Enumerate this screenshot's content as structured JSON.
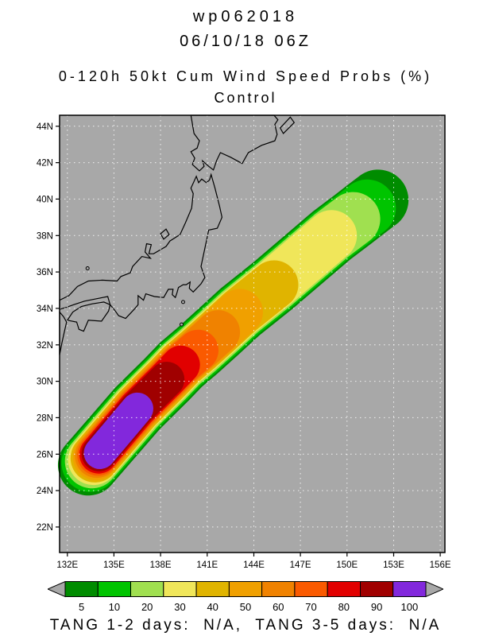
{
  "header": {
    "storm_id": "wp062018",
    "datetime": "06/10/18 06Z",
    "title": "0-120h 50kt Cum Wind Speed Probs (%)",
    "subtitle": "Control"
  },
  "footer": {
    "text": "TANG 1-2 days:  N/A,  TANG 3-5 days:  N/A"
  },
  "colorbar": {
    "arrow_color": "#a8a8a8"
  },
  "map": {
    "ocean_color": "#a8a8a8",
    "land_color": "#a8a8a8",
    "coast_color": "#000000",
    "grid_color": "#ffffff",
    "lon_min": 131.5,
    "lon_max": 156.3,
    "lat_min": 20.6,
    "lat_max": 44.6,
    "lon_ticks": [
      {
        "value": 132,
        "label": "132E"
      },
      {
        "value": 135,
        "label": "135E"
      },
      {
        "value": 138,
        "label": "138E"
      },
      {
        "value": 141,
        "label": "141E"
      },
      {
        "value": 144,
        "label": "144E"
      },
      {
        "value": 147,
        "label": "147E"
      },
      {
        "value": 150,
        "label": "150E"
      },
      {
        "value": 153,
        "label": "153E"
      },
      {
        "value": 156,
        "label": "156E"
      }
    ],
    "lat_ticks": [
      {
        "value": 44,
        "label": "44N"
      },
      {
        "value": 42,
        "label": "42N"
      },
      {
        "value": 40,
        "label": "40N"
      },
      {
        "value": 38,
        "label": "38N"
      },
      {
        "value": 36,
        "label": "36N"
      },
      {
        "value": 34,
        "label": "34N"
      },
      {
        "value": 32,
        "label": "32N"
      },
      {
        "value": 30,
        "label": "30N"
      },
      {
        "value": 28,
        "label": "28N"
      },
      {
        "value": 26,
        "label": "26N"
      },
      {
        "value": 24,
        "label": "24N"
      },
      {
        "value": 22,
        "label": "22N"
      }
    ],
    "coastlines": [
      {
        "name": "honshu",
        "points": [
          [
            141.25,
            41.35
          ],
          [
            141.5,
            40.6
          ],
          [
            141.8,
            39.6
          ],
          [
            141.95,
            39.0
          ],
          [
            141.65,
            38.4
          ],
          [
            141.1,
            38.3
          ],
          [
            140.95,
            37.7
          ],
          [
            140.75,
            36.9
          ],
          [
            140.6,
            36.3
          ],
          [
            140.85,
            35.7
          ],
          [
            140.6,
            35.35
          ],
          [
            140.1,
            34.9
          ],
          [
            139.85,
            35.1
          ],
          [
            139.9,
            35.45
          ],
          [
            139.65,
            35.3
          ],
          [
            139.45,
            35.3
          ],
          [
            139.15,
            35.15
          ],
          [
            139.05,
            34.85
          ],
          [
            138.95,
            34.6
          ],
          [
            138.75,
            34.75
          ],
          [
            138.8,
            35.05
          ],
          [
            138.5,
            35.05
          ],
          [
            138.2,
            34.6
          ],
          [
            137.6,
            34.65
          ],
          [
            137.05,
            34.8
          ],
          [
            136.9,
            34.45
          ],
          [
            136.55,
            34.7
          ],
          [
            136.55,
            34.2
          ],
          [
            136.3,
            33.95
          ],
          [
            135.75,
            33.45
          ],
          [
            135.3,
            33.6
          ],
          [
            135.05,
            33.9
          ],
          [
            134.75,
            34.2
          ],
          [
            134.6,
            34.65
          ],
          [
            134.0,
            34.55
          ],
          [
            133.1,
            34.4
          ],
          [
            132.4,
            34.2
          ],
          [
            131.9,
            34.05
          ],
          [
            131.5,
            33.95
          ],
          [
            131.5,
            34.45
          ],
          [
            132.1,
            34.7
          ],
          [
            132.65,
            35.2
          ],
          [
            133.35,
            35.5
          ],
          [
            134.25,
            35.55
          ],
          [
            135.2,
            35.5
          ],
          [
            135.45,
            35.75
          ],
          [
            136.05,
            35.95
          ],
          [
            136.2,
            36.3
          ],
          [
            136.8,
            36.85
          ],
          [
            137.35,
            36.75
          ],
          [
            137.0,
            37.1
          ],
          [
            137.1,
            37.55
          ],
          [
            137.4,
            37.5
          ],
          [
            137.25,
            37.0
          ],
          [
            137.55,
            37.0
          ],
          [
            138.35,
            37.4
          ],
          [
            138.6,
            37.7
          ],
          [
            139.25,
            38.05
          ],
          [
            139.6,
            38.7
          ],
          [
            140.0,
            39.5
          ],
          [
            140.1,
            40.3
          ],
          [
            139.95,
            40.6
          ],
          [
            140.3,
            41.25
          ],
          [
            140.45,
            40.9
          ],
          [
            140.65,
            41.1
          ],
          [
            140.95,
            40.9
          ],
          [
            141.15,
            41.05
          ]
        ]
      },
      {
        "name": "hokkaido",
        "points": [
          [
            139.95,
            44.6
          ],
          [
            140.15,
            43.6
          ],
          [
            140.5,
            43.2
          ],
          [
            140.35,
            42.8
          ],
          [
            139.95,
            42.6
          ],
          [
            140.2,
            42.25
          ],
          [
            140.05,
            41.9
          ],
          [
            140.5,
            41.55
          ],
          [
            140.8,
            41.8
          ],
          [
            140.7,
            42.1
          ],
          [
            141.1,
            41.8
          ],
          [
            141.4,
            41.6
          ],
          [
            141.6,
            42.1
          ],
          [
            141.85,
            42.55
          ],
          [
            142.5,
            42.3
          ],
          [
            143.25,
            41.95
          ],
          [
            143.65,
            42.55
          ],
          [
            144.5,
            42.95
          ],
          [
            145.35,
            43.2
          ],
          [
            145.5,
            43.55
          ],
          [
            145.35,
            44.1
          ],
          [
            145.55,
            44.35
          ],
          [
            145.3,
            44.6
          ]
        ]
      },
      {
        "name": "shikoku",
        "points": [
          [
            132.0,
            33.35
          ],
          [
            132.6,
            33.25
          ],
          [
            132.75,
            32.85
          ],
          [
            133.05,
            32.75
          ],
          [
            133.35,
            33.35
          ],
          [
            134.2,
            33.3
          ],
          [
            134.65,
            33.85
          ],
          [
            134.75,
            34.2
          ],
          [
            134.35,
            34.35
          ],
          [
            133.6,
            34.25
          ],
          [
            132.9,
            34.1
          ],
          [
            132.35,
            33.8
          ]
        ]
      },
      {
        "name": "kyushu",
        "points": [
          [
            131.5,
            33.8
          ],
          [
            131.75,
            33.55
          ],
          [
            131.95,
            33.25
          ],
          [
            131.8,
            32.7
          ],
          [
            131.65,
            32.1
          ],
          [
            131.5,
            31.45
          ]
        ]
      },
      {
        "name": "sado",
        "points": [
          [
            138.2,
            37.8
          ],
          [
            138.55,
            38.05
          ],
          [
            138.35,
            38.35
          ],
          [
            138.0,
            38.1
          ]
        ]
      },
      {
        "name": "kunashiri",
        "points": [
          [
            145.9,
            43.6
          ],
          [
            146.6,
            44.2
          ],
          [
            146.35,
            44.5
          ],
          [
            145.7,
            43.9
          ]
        ]
      }
    ],
    "islands": [
      [
        139.45,
        34.35
      ],
      [
        139.35,
        33.12
      ],
      [
        133.3,
        36.2
      ]
    ]
  },
  "chart_data": {
    "type": "heatmap",
    "subtype": "filled-contour probability swath on map",
    "storm_id": "wp062018",
    "valid": "06/10/18 06Z",
    "title": "0-120h 50kt Cum Wind Speed Probs (%)",
    "subtitle": "Control",
    "units": "%",
    "legend_labels": [
      "5",
      "10",
      "20",
      "30",
      "40",
      "50",
      "60",
      "70",
      "80",
      "90",
      "100"
    ],
    "legend_position": "bottom",
    "grid": true,
    "levels": [
      {
        "value": 5,
        "color": "#008c00",
        "halfwidth_deg": 1.8,
        "sw": [
          133.35,
          25.4
        ],
        "ne_index": 10
      },
      {
        "value": 10,
        "color": "#00c400",
        "halfwidth_deg": 1.7,
        "sw": [
          133.47,
          25.51
        ],
        "ne_index": 9
      },
      {
        "value": 20,
        "color": "#a0e050",
        "halfwidth_deg": 1.6,
        "sw": [
          133.58,
          25.61
        ],
        "ne_index": 8
      },
      {
        "value": 30,
        "color": "#f0e65a",
        "halfwidth_deg": 1.51,
        "sw": [
          133.68,
          25.7
        ],
        "ne_index": 7
      },
      {
        "value": 40,
        "color": "#e0b400",
        "halfwidth_deg": 1.44,
        "sw": [
          133.77,
          25.78
        ],
        "ne_index": 6
      },
      {
        "value": 50,
        "color": "#f0a000",
        "halfwidth_deg": 1.37,
        "sw": [
          133.84,
          25.84
        ],
        "ne_index": 5
      },
      {
        "value": 60,
        "color": "#f08200",
        "halfwidth_deg": 1.3,
        "sw": [
          133.9,
          25.9
        ],
        "ne_index": 4
      },
      {
        "value": 70,
        "color": "#fa5a00",
        "halfwidth_deg": 1.22,
        "sw": [
          133.96,
          25.95
        ],
        "ne_index": 3
      },
      {
        "value": 80,
        "color": "#e10000",
        "halfwidth_deg": 1.14,
        "sw": [
          134.01,
          25.99
        ],
        "ne_index": 2
      },
      {
        "value": 90,
        "color": "#a00000",
        "halfwidth_deg": 1.05,
        "sw": [
          134.05,
          26.03
        ],
        "ne_index": 1
      },
      {
        "value": 100,
        "color": "#8228dc",
        "halfwidth_deg": 0.95,
        "sw": [
          134.09,
          26.06
        ],
        "ne_index": 0
      }
    ],
    "centerline": [
      [
        136.5,
        28.5
      ],
      [
        138.4,
        30.1
      ],
      [
        139.3,
        30.9
      ],
      [
        140.4,
        31.7
      ],
      [
        141.7,
        32.7
      ],
      [
        143.1,
        33.8
      ],
      [
        145.3,
        35.3
      ],
      [
        149.0,
        38.0
      ],
      [
        150.4,
        38.9
      ],
      [
        151.3,
        39.5
      ],
      [
        152.0,
        39.95
      ]
    ]
  }
}
